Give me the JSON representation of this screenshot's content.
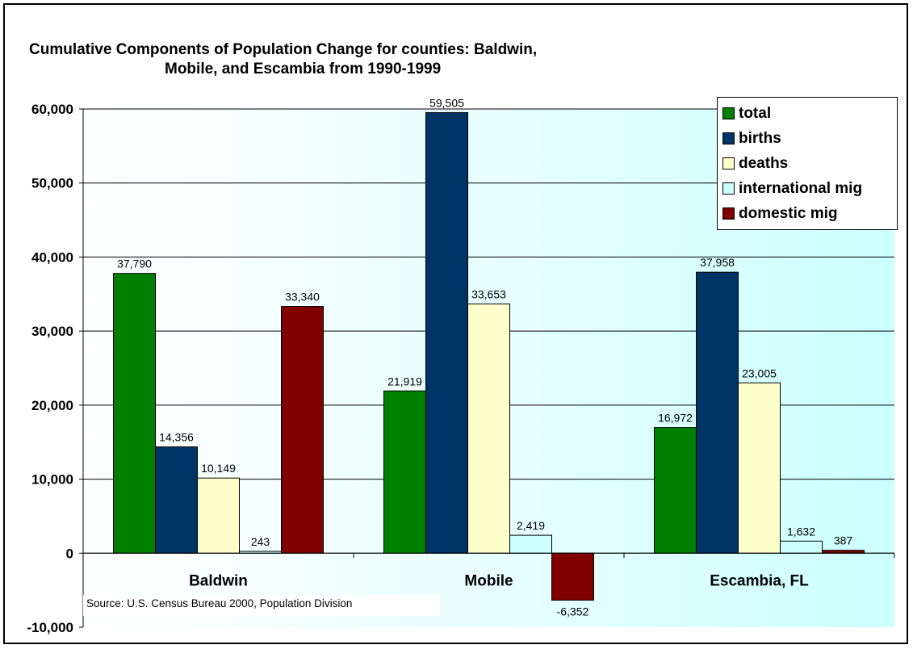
{
  "chart_data": {
    "type": "bar",
    "title_line1": "Cumulative Components of Population Change for counties: Baldwin,",
    "title_line2": "Mobile, and Escambia from 1990-1999",
    "categories": [
      "Baldwin",
      "Mobile",
      "Escambia, FL"
    ],
    "series": [
      {
        "name": "total",
        "color": "#008000",
        "values": [
          37790,
          21919,
          16972
        ],
        "labels": [
          "37,790",
          "21,919",
          "16,972"
        ]
      },
      {
        "name": "births",
        "color": "#003366",
        "values": [
          14356,
          59505,
          37958
        ],
        "labels": [
          "14,356",
          "59,505",
          "37,958"
        ]
      },
      {
        "name": "deaths",
        "color": "#FFFFCC",
        "values": [
          10149,
          33653,
          23005
        ],
        "labels": [
          "10,149",
          "33,653",
          "23,005"
        ]
      },
      {
        "name": "international mig",
        "color": "#CCFFFF",
        "values": [
          243,
          2419,
          1632
        ],
        "labels": [
          "243",
          "2,419",
          "1,632"
        ]
      },
      {
        "name": "domestic mig",
        "color": "#800000",
        "values": [
          33340,
          -6352,
          387
        ],
        "labels": [
          "33,340",
          "-6,352",
          "387"
        ]
      }
    ],
    "ylim": [
      -10000,
      60000
    ],
    "yticks": [
      -10000,
      0,
      10000,
      20000,
      30000,
      40000,
      50000,
      60000
    ],
    "ytick_labels": [
      "-10,000",
      "0",
      "10,000",
      "20,000",
      "30,000",
      "40,000",
      "50,000",
      "60,000"
    ],
    "grid": true,
    "legend_position": "top-right",
    "plot_background": "gradient white to light cyan",
    "source_note": "Source:  U.S. Census Bureau 2000, Population Division"
  }
}
